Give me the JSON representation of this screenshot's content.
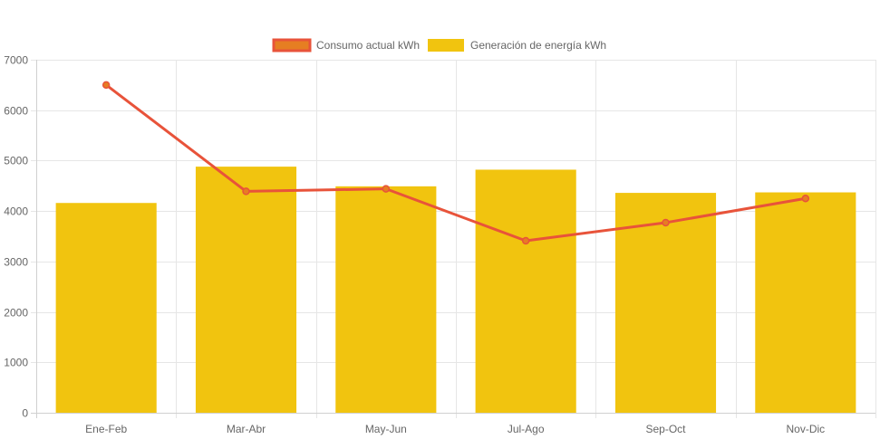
{
  "chart_data": {
    "type": "bar",
    "categories": [
      "Ene-Feb",
      "Mar-Abr",
      "May-Jun",
      "Jul-Ago",
      "Sep-Oct",
      "Nov-Dic"
    ],
    "series": [
      {
        "name": "Consumo actual kWh",
        "type": "line",
        "color": "#e8533a",
        "values": [
          6500,
          4390,
          4440,
          3410,
          3770,
          4250
        ]
      },
      {
        "name": "Generación de energía kWh",
        "type": "bar",
        "color": "#f1c40f",
        "values": [
          4160,
          4880,
          4490,
          4820,
          4360,
          4370
        ]
      }
    ],
    "legend_swatch_fill_line": "#e67e22",
    "ylim": [
      0,
      7000
    ],
    "yticks": [
      "0",
      "1000",
      "2000",
      "3000",
      "4000",
      "5000",
      "6000",
      "7000"
    ],
    "grid": true,
    "legend_position": "top-center",
    "title": "",
    "xlabel": "",
    "ylabel": ""
  }
}
